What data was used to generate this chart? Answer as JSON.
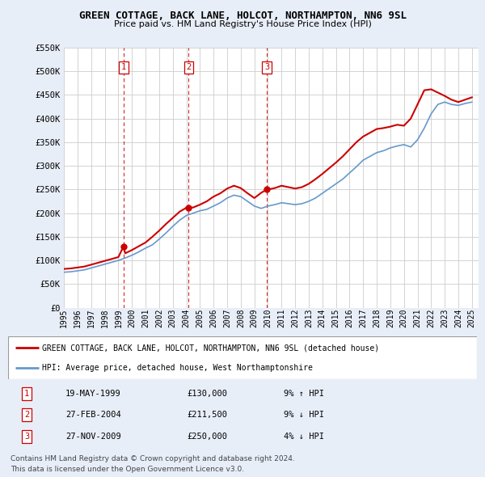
{
  "title": "GREEN COTTAGE, BACK LANE, HOLCOT, NORTHAMPTON, NN6 9SL",
  "subtitle": "Price paid vs. HM Land Registry's House Price Index (HPI)",
  "legend_label_red": "GREEN COTTAGE, BACK LANE, HOLCOT, NORTHAMPTON, NN6 9SL (detached house)",
  "legend_label_blue": "HPI: Average price, detached house, West Northamptonshire",
  "footer1": "Contains HM Land Registry data © Crown copyright and database right 2024.",
  "footer2": "This data is licensed under the Open Government Licence v3.0.",
  "transactions": [
    {
      "num": 1,
      "date": "19-MAY-1999",
      "price": "£130,000",
      "pct": "9% ↑ HPI"
    },
    {
      "num": 2,
      "date": "27-FEB-2004",
      "price": "£211,500",
      "pct": "9% ↓ HPI"
    },
    {
      "num": 3,
      "date": "27-NOV-2009",
      "price": "£250,000",
      "pct": "4% ↓ HPI"
    }
  ],
  "transaction_dates": [
    1999.38,
    2004.16,
    2009.91
  ],
  "transaction_prices": [
    130000,
    211500,
    250000
  ],
  "ylim": [
    0,
    550000
  ],
  "yticks": [
    0,
    50000,
    100000,
    150000,
    200000,
    250000,
    300000,
    350000,
    400000,
    450000,
    500000,
    550000
  ],
  "ytick_labels": [
    "£0",
    "£50K",
    "£100K",
    "£150K",
    "£200K",
    "£250K",
    "£300K",
    "£350K",
    "£400K",
    "£450K",
    "£500K",
    "£550K"
  ],
  "xlim_start": 1995.0,
  "xlim_end": 2025.5,
  "xtick_years": [
    1995,
    1996,
    1997,
    1998,
    1999,
    2000,
    2001,
    2002,
    2003,
    2004,
    2005,
    2006,
    2007,
    2008,
    2009,
    2010,
    2011,
    2012,
    2013,
    2014,
    2015,
    2016,
    2017,
    2018,
    2019,
    2020,
    2021,
    2022,
    2023,
    2024,
    2025
  ],
  "red_color": "#cc0000",
  "blue_color": "#6699cc",
  "vline_color": "#cc0000",
  "grid_color": "#cccccc",
  "bg_color": "#e8eef8",
  "plot_bg": "#ffffff",
  "hpi_x": [
    1995.0,
    1995.5,
    1996.0,
    1996.5,
    1997.0,
    1997.5,
    1998.0,
    1998.5,
    1999.0,
    1999.5,
    2000.0,
    2000.5,
    2001.0,
    2001.5,
    2002.0,
    2002.5,
    2003.0,
    2003.5,
    2004.0,
    2004.5,
    2005.0,
    2005.5,
    2006.0,
    2006.5,
    2007.0,
    2007.5,
    2008.0,
    2008.5,
    2009.0,
    2009.5,
    2010.0,
    2010.5,
    2011.0,
    2011.5,
    2012.0,
    2012.5,
    2013.0,
    2013.5,
    2014.0,
    2014.5,
    2015.0,
    2015.5,
    2016.0,
    2016.5,
    2017.0,
    2017.5,
    2018.0,
    2018.5,
    2019.0,
    2019.5,
    2020.0,
    2020.5,
    2021.0,
    2021.5,
    2022.0,
    2022.5,
    2023.0,
    2023.5,
    2024.0,
    2024.5,
    2025.0
  ],
  "hpi_y": [
    75000,
    76000,
    78000,
    80000,
    84000,
    88000,
    92000,
    96000,
    100000,
    105000,
    111000,
    118000,
    126000,
    133000,
    145000,
    158000,
    172000,
    185000,
    195000,
    200000,
    205000,
    208000,
    215000,
    222000,
    232000,
    238000,
    235000,
    225000,
    215000,
    210000,
    215000,
    218000,
    222000,
    220000,
    218000,
    220000,
    225000,
    232000,
    242000,
    252000,
    262000,
    272000,
    285000,
    298000,
    312000,
    320000,
    328000,
    332000,
    338000,
    342000,
    345000,
    340000,
    355000,
    380000,
    410000,
    430000,
    435000,
    430000,
    428000,
    432000,
    435000
  ],
  "red_x": [
    1995.0,
    1995.5,
    1996.0,
    1996.5,
    1997.0,
    1997.5,
    1998.0,
    1998.5,
    1999.0,
    1999.38,
    1999.5,
    2000.0,
    2000.5,
    2001.0,
    2001.5,
    2002.0,
    2002.5,
    2003.0,
    2003.5,
    2004.0,
    2004.16,
    2004.5,
    2005.0,
    2005.5,
    2006.0,
    2006.5,
    2007.0,
    2007.5,
    2008.0,
    2008.5,
    2009.0,
    2009.5,
    2009.91,
    2010.0,
    2010.5,
    2011.0,
    2011.5,
    2012.0,
    2012.5,
    2013.0,
    2013.5,
    2014.0,
    2014.5,
    2015.0,
    2015.5,
    2016.0,
    2016.5,
    2017.0,
    2017.5,
    2018.0,
    2018.5,
    2019.0,
    2019.5,
    2020.0,
    2020.5,
    2021.0,
    2021.5,
    2022.0,
    2022.5,
    2023.0,
    2023.5,
    2024.0,
    2024.5,
    2025.0
  ],
  "red_y": [
    82000,
    83000,
    85000,
    87000,
    91000,
    95000,
    99000,
    103000,
    107000,
    130000,
    115000,
    122000,
    130000,
    138000,
    150000,
    163000,
    177000,
    190000,
    203000,
    211500,
    211500,
    212000,
    218000,
    225000,
    235000,
    242000,
    252000,
    258000,
    253000,
    242000,
    232000,
    243000,
    250000,
    250000,
    253000,
    258000,
    255000,
    252000,
    255000,
    262000,
    272000,
    283000,
    295000,
    307000,
    320000,
    335000,
    350000,
    362000,
    370000,
    378000,
    380000,
    383000,
    387000,
    385000,
    400000,
    430000,
    460000,
    462000,
    455000,
    448000,
    440000,
    435000,
    440000,
    445000
  ]
}
